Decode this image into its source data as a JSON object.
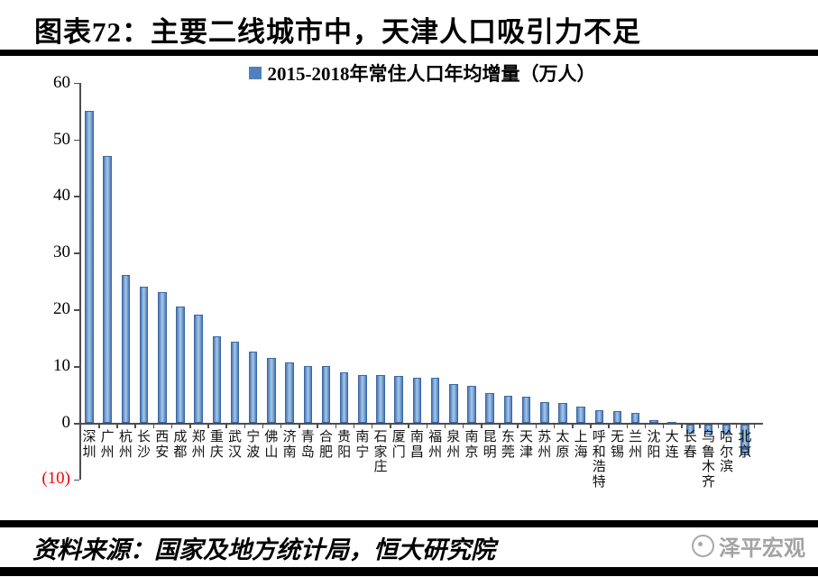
{
  "page": {
    "title": "图表72：主要二线城市中，天津人口吸引力不足",
    "source": "资料来源：国家及地方统计局，恒大研究院",
    "logo_text": "泽平宏观"
  },
  "chart_data": {
    "type": "bar",
    "legend": "2015-2018年常住人口年均增量（万人）",
    "legend_position": "top-center",
    "grid": false,
    "ylim": [
      -10,
      60
    ],
    "yticks": [
      60,
      50,
      40,
      30,
      20,
      10,
      0
    ],
    "bottom_tick_value": -10,
    "bottom_tick_label": "(10)",
    "bar_color": "#4f81bd",
    "negative_tick_label_color": "#ff0000",
    "categories": [
      "深圳",
      "广州",
      "杭州",
      "长沙",
      "西安",
      "成都",
      "郑州",
      "重庆",
      "武汉",
      "宁波",
      "佛山",
      "济南",
      "青岛",
      "合肥",
      "贵阳",
      "南宁",
      "石家庄",
      "厦门",
      "南昌",
      "福州",
      "泉州",
      "南京",
      "昆明",
      "东莞",
      "天津",
      "苏州",
      "太原",
      "上海",
      "呼和浩特",
      "无锡",
      "兰州",
      "沈阳",
      "大连",
      "长春",
      "乌鲁木齐",
      "哈尔滨",
      "北京"
    ],
    "values": [
      55,
      47,
      26,
      24,
      23,
      20.5,
      19,
      15.2,
      14.3,
      12.6,
      11.4,
      10.7,
      10,
      10,
      8.9,
      8.4,
      8.4,
      8.3,
      8,
      8,
      6.9,
      6.5,
      5.3,
      4.8,
      4.6,
      3.7,
      3.5,
      2.8,
      2.2,
      2,
      1.8,
      0.4,
      0.2,
      -1.6,
      -1.8,
      -1.6,
      -5.5
    ]
  }
}
